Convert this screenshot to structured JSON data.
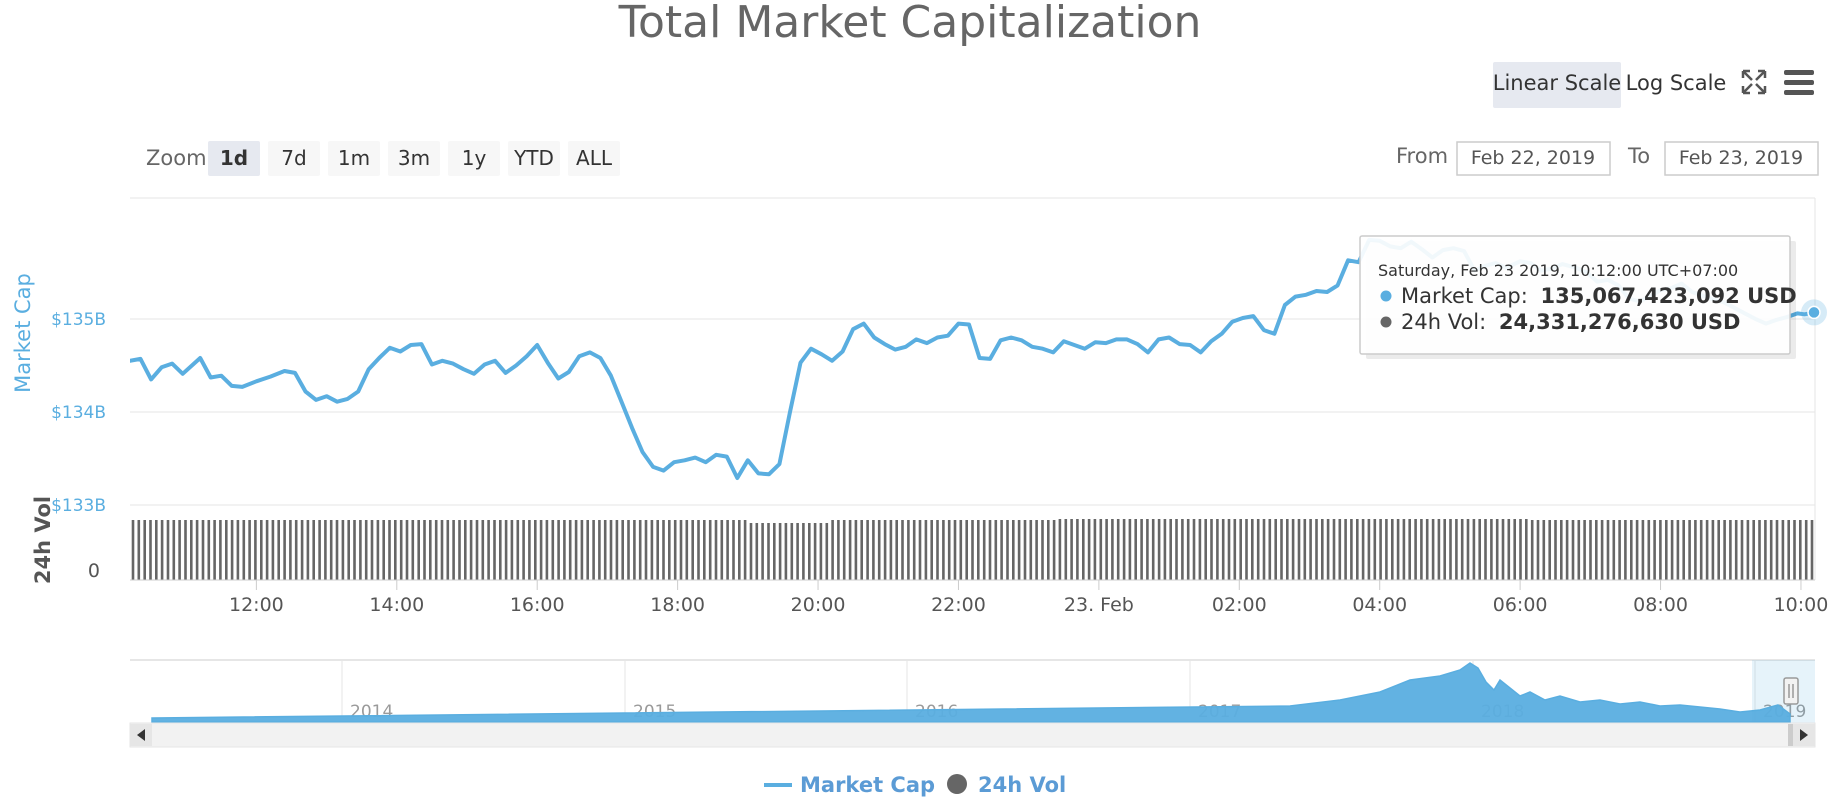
{
  "title": "Total Market Capitalization",
  "scale_buttons": [
    {
      "label": "Linear Scale",
      "active": true
    },
    {
      "label": "Log Scale",
      "active": false
    }
  ],
  "zoom": {
    "label": "Zoom",
    "buttons": [
      {
        "label": "1d",
        "active": true
      },
      {
        "label": "7d",
        "active": false
      },
      {
        "label": "1m",
        "active": false
      },
      {
        "label": "3m",
        "active": false
      },
      {
        "label": "1y",
        "active": false
      },
      {
        "label": "YTD",
        "active": false
      },
      {
        "label": "ALL",
        "active": false
      }
    ]
  },
  "range": {
    "from_label": "From",
    "from_value": "Feb 22, 2019",
    "to_label": "To",
    "to_value": "Feb 23, 2019"
  },
  "tooltip": {
    "date": "Saturday, Feb 23 2019, 10:12:00 UTC+07:00",
    "market_cap_label": "Market Cap:",
    "market_cap_value": "135,067,423,092 USD",
    "vol_label": "24h Vol:",
    "vol_value": "24,331,276,630 USD"
  },
  "colors": {
    "market_cap": "#5aaee0",
    "volume": "#666666",
    "legend": "#5b9bd5",
    "button_active": "#e6e9f0",
    "button": "#f7f7f7"
  },
  "navigator": {
    "labels": [
      "2014",
      "2015",
      "2016",
      "2017",
      "2018",
      "2019"
    ]
  },
  "legend": [
    {
      "label": "Market Cap",
      "symbol": "line"
    },
    {
      "label": "24h Vol",
      "symbol": "circle"
    }
  ],
  "icons": [
    "fullscreen-icon",
    "menu-icon",
    "scroll-left-icon",
    "scroll-right-icon",
    "navigator-handle-icon"
  ],
  "chart_data": {
    "type": "line",
    "x_unit": "hours since Feb 22 2019 10:12 (UTC+07:00)",
    "x_ticks": [
      "12:00",
      "14:00",
      "16:00",
      "18:00",
      "20:00",
      "22:00",
      "23. Feb",
      "02:00",
      "04:00",
      "06:00",
      "08:00",
      "10:00"
    ],
    "x_tick_values": [
      1.8,
      3.8,
      5.8,
      7.8,
      9.8,
      11.8,
      13.8,
      15.8,
      17.8,
      19.8,
      21.8,
      23.8
    ],
    "xlim": [
      0,
      24
    ],
    "y_axis": {
      "title": "Market Cap",
      "ticks": [
        "$133B",
        "$134B",
        "$135B"
      ],
      "tick_values": [
        133,
        134,
        135
      ],
      "ylim": [
        133,
        136.3
      ],
      "unit": "billion USD"
    },
    "volume_axis": {
      "title": "24h Vol",
      "ticks": [
        "0"
      ]
    },
    "series": [
      {
        "name": "Market Cap",
        "points": [
          [
            0.0,
            134.55
          ],
          [
            0.15,
            134.57
          ],
          [
            0.3,
            134.35
          ],
          [
            0.45,
            134.48
          ],
          [
            0.6,
            134.52
          ],
          [
            0.75,
            134.41
          ],
          [
            1.0,
            134.58
          ],
          [
            1.15,
            134.37
          ],
          [
            1.3,
            134.39
          ],
          [
            1.45,
            134.28
          ],
          [
            1.6,
            134.27
          ],
          [
            1.8,
            134.33
          ],
          [
            2.0,
            134.38
          ],
          [
            2.2,
            134.44
          ],
          [
            2.35,
            134.42
          ],
          [
            2.5,
            134.22
          ],
          [
            2.65,
            134.13
          ],
          [
            2.8,
            134.17
          ],
          [
            2.95,
            134.11
          ],
          [
            3.1,
            134.14
          ],
          [
            3.25,
            134.22
          ],
          [
            3.4,
            134.46
          ],
          [
            3.55,
            134.58
          ],
          [
            3.7,
            134.69
          ],
          [
            3.85,
            134.65
          ],
          [
            4.0,
            134.72
          ],
          [
            4.15,
            134.73
          ],
          [
            4.3,
            134.51
          ],
          [
            4.45,
            134.55
          ],
          [
            4.6,
            134.52
          ],
          [
            4.75,
            134.46
          ],
          [
            4.9,
            134.41
          ],
          [
            5.05,
            134.51
          ],
          [
            5.2,
            134.55
          ],
          [
            5.35,
            134.42
          ],
          [
            5.5,
            134.5
          ],
          [
            5.65,
            134.6
          ],
          [
            5.8,
            134.72
          ],
          [
            5.95,
            134.53
          ],
          [
            6.1,
            134.36
          ],
          [
            6.25,
            134.43
          ],
          [
            6.4,
            134.6
          ],
          [
            6.55,
            134.64
          ],
          [
            6.7,
            134.58
          ],
          [
            6.85,
            134.39
          ],
          [
            7.0,
            134.11
          ],
          [
            7.15,
            133.83
          ],
          [
            7.3,
            133.57
          ],
          [
            7.45,
            133.41
          ],
          [
            7.6,
            133.37
          ],
          [
            7.75,
            133.46
          ],
          [
            7.9,
            133.48
          ],
          [
            8.05,
            133.51
          ],
          [
            8.2,
            133.46
          ],
          [
            8.35,
            133.54
          ],
          [
            8.5,
            133.52
          ],
          [
            8.65,
            133.29
          ],
          [
            8.8,
            133.48
          ],
          [
            8.95,
            133.34
          ],
          [
            9.1,
            133.33
          ],
          [
            9.25,
            133.44
          ],
          [
            9.4,
            134.0
          ],
          [
            9.55,
            134.53
          ],
          [
            9.7,
            134.68
          ],
          [
            9.85,
            134.62
          ],
          [
            10.0,
            134.55
          ],
          [
            10.15,
            134.65
          ],
          [
            10.3,
            134.89
          ],
          [
            10.45,
            134.95
          ],
          [
            10.6,
            134.8
          ],
          [
            10.75,
            134.73
          ],
          [
            10.9,
            134.67
          ],
          [
            11.05,
            134.7
          ],
          [
            11.2,
            134.78
          ],
          [
            11.35,
            134.74
          ],
          [
            11.5,
            134.8
          ],
          [
            11.65,
            134.82
          ],
          [
            11.8,
            134.95
          ],
          [
            11.95,
            134.94
          ],
          [
            12.1,
            134.58
          ],
          [
            12.25,
            134.57
          ],
          [
            12.4,
            134.77
          ],
          [
            12.55,
            134.8
          ],
          [
            12.7,
            134.77
          ],
          [
            12.85,
            134.7
          ],
          [
            13.0,
            134.68
          ],
          [
            13.15,
            134.64
          ],
          [
            13.3,
            134.76
          ],
          [
            13.45,
            134.72
          ],
          [
            13.6,
            134.68
          ],
          [
            13.75,
            134.75
          ],
          [
            13.9,
            134.74
          ],
          [
            14.05,
            134.78
          ],
          [
            14.2,
            134.78
          ],
          [
            14.35,
            134.73
          ],
          [
            14.5,
            134.64
          ],
          [
            14.65,
            134.78
          ],
          [
            14.8,
            134.8
          ],
          [
            14.95,
            134.73
          ],
          [
            15.1,
            134.72
          ],
          [
            15.25,
            134.64
          ],
          [
            15.4,
            134.76
          ],
          [
            15.55,
            134.84
          ],
          [
            15.7,
            134.97
          ],
          [
            15.85,
            135.01
          ],
          [
            16.0,
            135.03
          ],
          [
            16.15,
            134.88
          ],
          [
            16.3,
            134.84
          ],
          [
            16.45,
            135.15
          ],
          [
            16.6,
            135.24
          ],
          [
            16.75,
            135.26
          ],
          [
            16.9,
            135.3
          ],
          [
            17.05,
            135.29
          ],
          [
            17.2,
            135.36
          ],
          [
            17.35,
            135.63
          ],
          [
            17.5,
            135.61
          ],
          [
            17.65,
            135.85
          ],
          [
            17.8,
            135.84
          ],
          [
            17.95,
            135.78
          ],
          [
            18.1,
            135.76
          ],
          [
            18.25,
            135.83
          ],
          [
            18.4,
            135.75
          ],
          [
            18.55,
            135.66
          ],
          [
            18.7,
            135.74
          ],
          [
            18.85,
            135.76
          ],
          [
            19.0,
            135.73
          ],
          [
            19.15,
            135.52
          ],
          [
            19.3,
            135.57
          ],
          [
            19.45,
            135.6
          ],
          [
            19.6,
            135.55
          ],
          [
            19.8,
            135.62
          ],
          [
            19.95,
            135.6
          ],
          [
            20.1,
            135.52
          ],
          [
            20.25,
            135.54
          ],
          [
            20.4,
            135.59
          ],
          [
            20.6,
            135.55
          ],
          [
            20.75,
            135.5
          ],
          [
            20.9,
            135.4
          ],
          [
            21.05,
            135.42
          ],
          [
            21.2,
            135.36
          ],
          [
            21.35,
            135.22
          ],
          [
            21.5,
            135.19
          ],
          [
            21.65,
            135.24
          ],
          [
            21.8,
            135.31
          ],
          [
            21.95,
            135.33
          ],
          [
            22.1,
            135.38
          ],
          [
            22.25,
            135.29
          ],
          [
            22.4,
            135.25
          ],
          [
            22.55,
            135.21
          ],
          [
            22.7,
            135.18
          ],
          [
            22.85,
            135.12
          ],
          [
            23.0,
            135.06
          ],
          [
            23.15,
            135.0
          ],
          [
            23.3,
            134.95
          ],
          [
            23.45,
            134.99
          ],
          [
            23.6,
            135.02
          ],
          [
            23.75,
            135.06
          ],
          [
            23.85,
            135.05
          ],
          [
            24.0,
            135.07
          ]
        ]
      },
      {
        "name": "24h Vol",
        "type": "column",
        "approx_relative_level": "uniform, ~24.3B USD each"
      }
    ]
  }
}
